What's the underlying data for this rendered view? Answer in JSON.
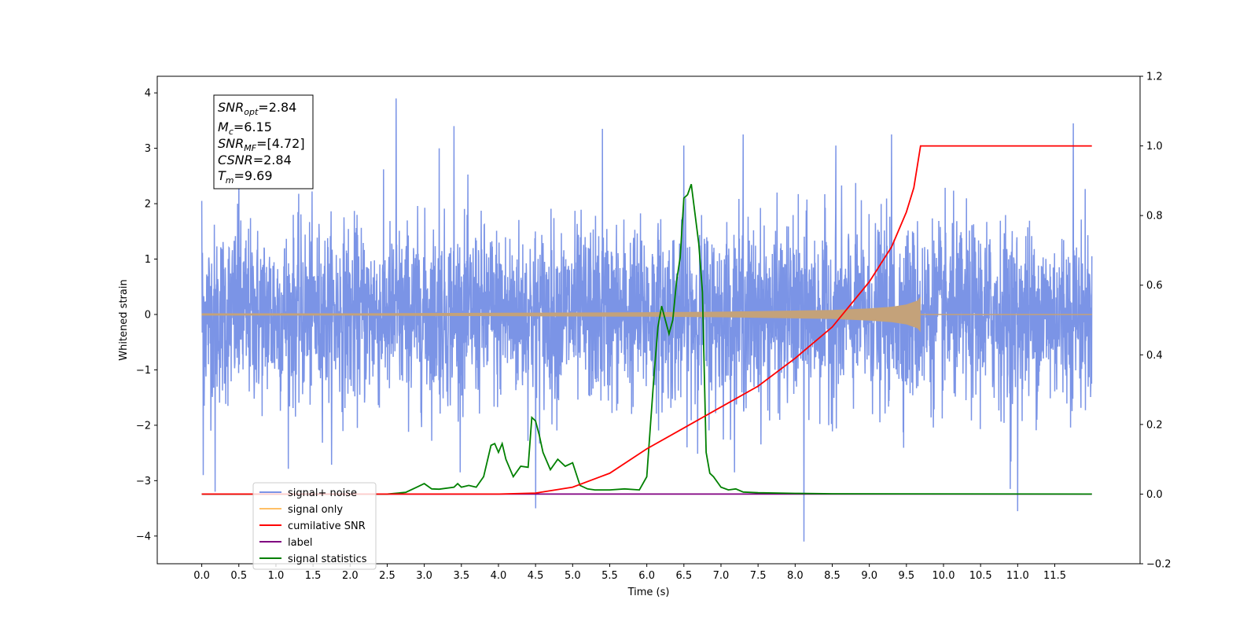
{
  "chart_data": {
    "type": "line",
    "xlabel": "Time (s)",
    "ylabel": "Whitened strain",
    "xlim": [
      -0.6,
      12.65
    ],
    "ylim": [
      -4.5,
      4.3
    ],
    "y2lim": [
      -0.2,
      1.2
    ],
    "x_ticks": [
      "0.0",
      "0.5",
      "1.0",
      "1.5",
      "2.0",
      "2.5",
      "3.0",
      "3.5",
      "4.0",
      "4.5",
      "5.0",
      "5.5",
      "6.0",
      "6.5",
      "7.0",
      "7.5",
      "8.0",
      "8.5",
      "9.0",
      "9.5",
      "10.0",
      "10.5",
      "11.0",
      "11.5"
    ],
    "y_ticks": [
      "4",
      "3",
      "2",
      "1",
      "0",
      "−1",
      "−2",
      "−3",
      "−4"
    ],
    "y2_ticks": [
      "1.2",
      "1.0",
      "0.8",
      "0.6",
      "0.4",
      "0.2",
      "0.0",
      "−0.2"
    ],
    "grid": false,
    "legend_position": "lower-left",
    "info_box": {
      "snr_opt": {
        "symbol": "SNR",
        "sub": "opt",
        "value": "=2.84"
      },
      "mc": {
        "symbol": "M",
        "sub": "c",
        "value": "=6.15"
      },
      "snr_mf": {
        "symbol": "SNR",
        "sub": "MF",
        "value": "=[4.72]"
      },
      "csnr": {
        "symbol": "CSNR",
        "sub": "",
        "value": "=2.84"
      },
      "tm": {
        "symbol": "T",
        "sub": "m",
        "value": "=9.69"
      }
    },
    "noise_band": {
      "typical_range": [
        -1.5,
        1.5
      ],
      "t_range": [
        0.0,
        12.0
      ]
    },
    "noise_spikes": [
      {
        "x": 0.0,
        "y": 2.05
      },
      {
        "x": 0.02,
        "y": -2.9
      },
      {
        "x": 0.18,
        "y": -3.2
      },
      {
        "x": 0.5,
        "y": 2.7
      },
      {
        "x": 2.62,
        "y": 3.9
      },
      {
        "x": 3.2,
        "y": 3.0
      },
      {
        "x": 3.4,
        "y": 3.4
      },
      {
        "x": 4.5,
        "y": -3.5
      },
      {
        "x": 5.4,
        "y": 3.35
      },
      {
        "x": 6.5,
        "y": 3.05
      },
      {
        "x": 7.3,
        "y": 3.25
      },
      {
        "x": 8.12,
        "y": -4.1
      },
      {
        "x": 8.55,
        "y": 3.05
      },
      {
        "x": 9.3,
        "y": 3.25
      },
      {
        "x": 10.9,
        "y": -3.15
      },
      {
        "x": 11.0,
        "y": -3.55
      },
      {
        "x": 11.75,
        "y": 3.45
      }
    ],
    "series": [
      {
        "name": "signal+ noise",
        "color": "#7b94e6",
        "axis": "left",
        "description_values": "noise around 0, std ≈ 0.8"
      },
      {
        "name": "signal only",
        "color": "#ffbf66",
        "axis": "left",
        "x": [
          0.0,
          2.0,
          4.0,
          6.0,
          7.0,
          8.0,
          8.5,
          9.0,
          9.3,
          9.5,
          9.65,
          9.69
        ],
        "amplitude": [
          0.02,
          0.02,
          0.03,
          0.04,
          0.05,
          0.07,
          0.08,
          0.11,
          0.14,
          0.18,
          0.25,
          0.32
        ]
      },
      {
        "name": "cumilative SNR",
        "color": "#ff0000",
        "axis": "right",
        "x": [
          0.0,
          4.0,
          4.5,
          5.0,
          5.5,
          6.0,
          6.5,
          7.0,
          7.5,
          8.0,
          8.5,
          9.0,
          9.3,
          9.5,
          9.6,
          9.69,
          12.0
        ],
        "y": [
          0.0,
          0.0,
          0.003,
          0.02,
          0.06,
          0.13,
          0.19,
          0.25,
          0.31,
          0.39,
          0.48,
          0.61,
          0.71,
          0.81,
          0.88,
          1.0,
          1.0
        ]
      },
      {
        "name": "label",
        "color": "#800080",
        "axis": "right",
        "x": [
          0.0,
          12.0
        ],
        "y": [
          0.0,
          0.0
        ]
      },
      {
        "name": "signal statistics",
        "color": "#008000",
        "axis": "right",
        "x": [
          0.0,
          2.5,
          2.75,
          2.9,
          3.0,
          3.1,
          3.2,
          3.4,
          3.45,
          3.5,
          3.6,
          3.7,
          3.8,
          3.9,
          3.95,
          4.0,
          4.05,
          4.1,
          4.2,
          4.3,
          4.4,
          4.45,
          4.5,
          4.55,
          4.6,
          4.7,
          4.8,
          4.9,
          5.0,
          5.1,
          5.2,
          5.3,
          5.5,
          5.7,
          5.9,
          6.0,
          6.1,
          6.15,
          6.2,
          6.3,
          6.35,
          6.4,
          6.45,
          6.5,
          6.55,
          6.6,
          6.7,
          6.75,
          6.8,
          6.85,
          6.9,
          7.0,
          7.1,
          7.2,
          7.3,
          7.5,
          8.0,
          8.5,
          12.0
        ],
        "y": [
          0.0,
          0.0,
          0.005,
          0.02,
          0.03,
          0.015,
          0.014,
          0.02,
          0.03,
          0.02,
          0.025,
          0.02,
          0.05,
          0.14,
          0.145,
          0.12,
          0.145,
          0.1,
          0.05,
          0.08,
          0.077,
          0.22,
          0.21,
          0.17,
          0.12,
          0.07,
          0.1,
          0.08,
          0.09,
          0.025,
          0.015,
          0.012,
          0.012,
          0.015,
          0.012,
          0.05,
          0.35,
          0.48,
          0.54,
          0.46,
          0.5,
          0.61,
          0.68,
          0.85,
          0.86,
          0.89,
          0.72,
          0.58,
          0.12,
          0.06,
          0.05,
          0.02,
          0.012,
          0.015,
          0.006,
          0.004,
          0.002,
          0.001,
          0.0
        ]
      }
    ]
  }
}
